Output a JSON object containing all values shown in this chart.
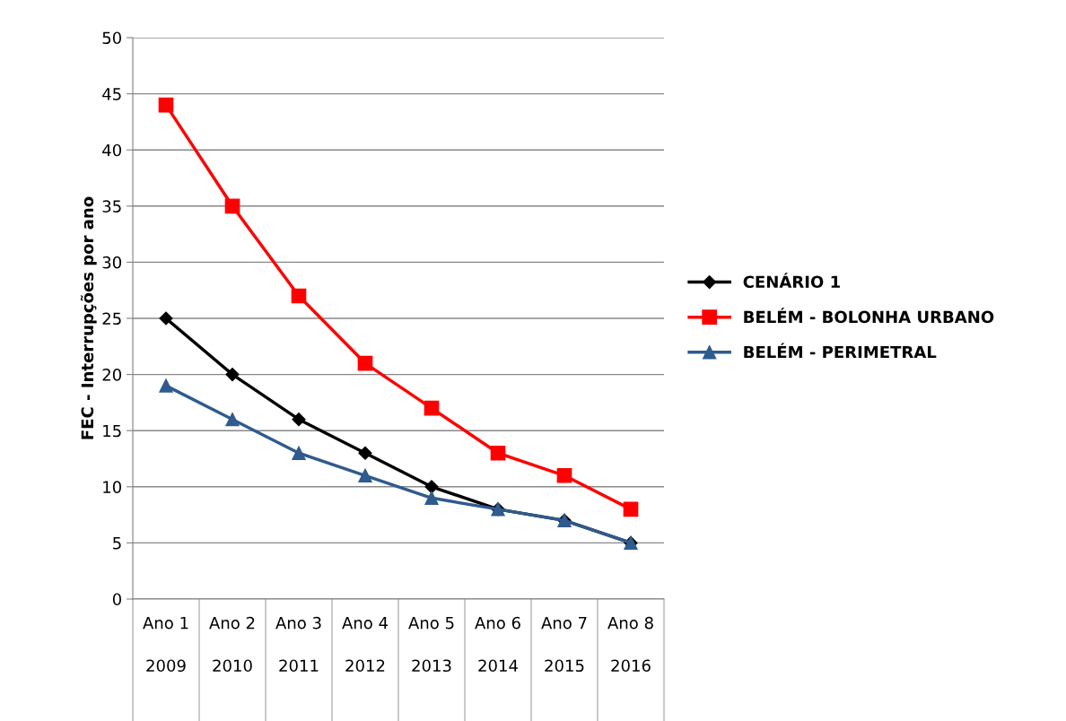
{
  "chart_data": {
    "type": "line",
    "ylabel": "FEC - Interrupções por ano",
    "categories": [
      "Ano 1\n2009",
      "Ano 2\n2010",
      "Ano 3\n2011",
      "Ano 4\n2012",
      "Ano 5\n2013",
      "Ano 6\n2014",
      "Ano 7\n2015",
      "Ano 8\n2016"
    ],
    "series": [
      {
        "name": "CENÁRIO 1",
        "color": "#000000",
        "marker": "diamond",
        "values": [
          25,
          20,
          16,
          13,
          10,
          8,
          7,
          5
        ]
      },
      {
        "name": "BELÉM - BOLONHA URBANO",
        "color": "#ff0000",
        "marker": "square",
        "values": [
          44,
          35,
          27,
          21,
          17,
          13,
          11,
          8
        ]
      },
      {
        "name": "BELÉM - PERIMETRAL",
        "color": "#2f5b8e",
        "marker": "triangle",
        "values": [
          19,
          16,
          13,
          11,
          9,
          8,
          7,
          5
        ]
      }
    ],
    "ylim": [
      0,
      50
    ],
    "yticks": [
      0,
      5,
      10,
      15,
      20,
      25,
      30,
      35,
      40,
      45,
      50
    ],
    "grid": "y",
    "legend": "right",
    "line_style": "solid"
  }
}
